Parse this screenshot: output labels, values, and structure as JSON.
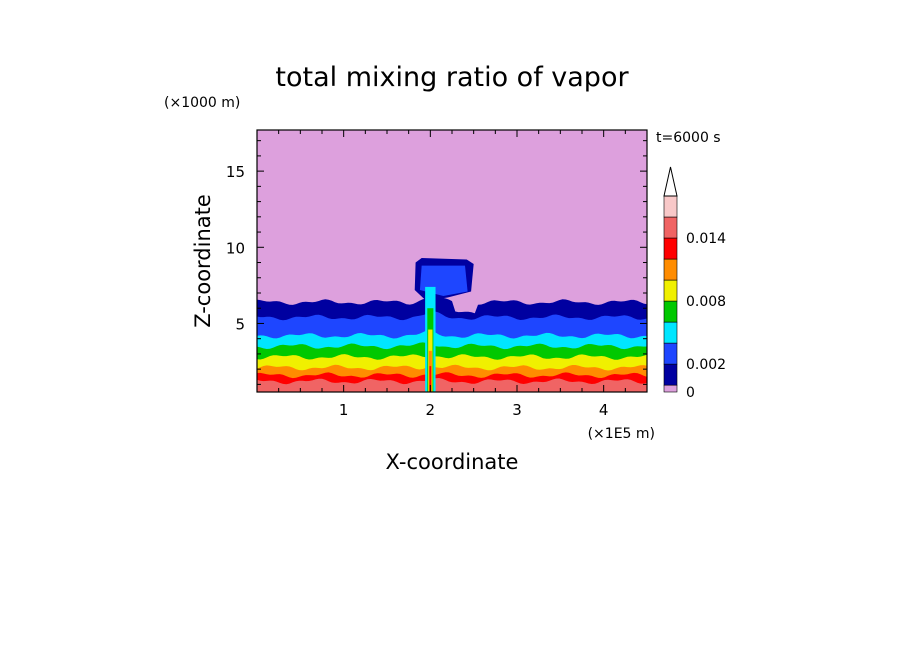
{
  "chart_data": {
    "type": "heatmap",
    "title": "total mixing ratio of vapor",
    "xlabel": "X-coordinate",
    "ylabel": "Z-coordinate",
    "x_unit": "(×1E5 m)",
    "y_unit": "(×1000 m)",
    "time_label": "t=6000 s",
    "xlim": [
      0,
      4.5
    ],
    "ylim": [
      0.5,
      17.7
    ],
    "x_ticks": [
      {
        "value": 1,
        "label": "1"
      },
      {
        "value": 2,
        "label": "2"
      },
      {
        "value": 3,
        "label": "3"
      },
      {
        "value": 4,
        "label": "4"
      }
    ],
    "y_ticks": [
      {
        "value": 5,
        "label": "5"
      },
      {
        "value": 10,
        "label": "10"
      },
      {
        "value": 15,
        "label": "15"
      }
    ],
    "colorbar": {
      "levels": [
        0,
        0.001,
        0.002,
        0.004,
        0.006,
        0.008,
        0.01,
        0.012,
        0.014,
        0.016
      ],
      "colors": [
        "#dda0dd",
        "#0000a0",
        "#1e46ff",
        "#00e6ff",
        "#00c800",
        "#f0f000",
        "#ff8c00",
        "#ff0000",
        "#f06464",
        "#f8c8c8"
      ],
      "tick_labels": [
        {
          "value": 0,
          "label": "0"
        },
        {
          "value": 0.002,
          "label": "0.002"
        },
        {
          "value": 0.008,
          "label": "0.008"
        },
        {
          "value": 0.014,
          "label": "0.014"
        }
      ],
      "extend": "max"
    },
    "layers_top_km": [
      {
        "value": 0.014,
        "top": 1.2
      },
      {
        "value": 0.012,
        "top": 1.6
      },
      {
        "value": 0.01,
        "top": 2.1
      },
      {
        "value": 0.008,
        "top": 2.8
      },
      {
        "value": 0.006,
        "top": 3.5
      },
      {
        "value": 0.004,
        "top": 4.2
      },
      {
        "value": 0.002,
        "top": 5.4
      },
      {
        "value": 0.001,
        "top": 6.4
      },
      {
        "value": 0.0005,
        "top": 7.8
      }
    ],
    "convective_plume": {
      "x_range": [
        1.8,
        2.5
      ],
      "cloud_top_km": 9.3,
      "center_x": 2.0
    }
  }
}
